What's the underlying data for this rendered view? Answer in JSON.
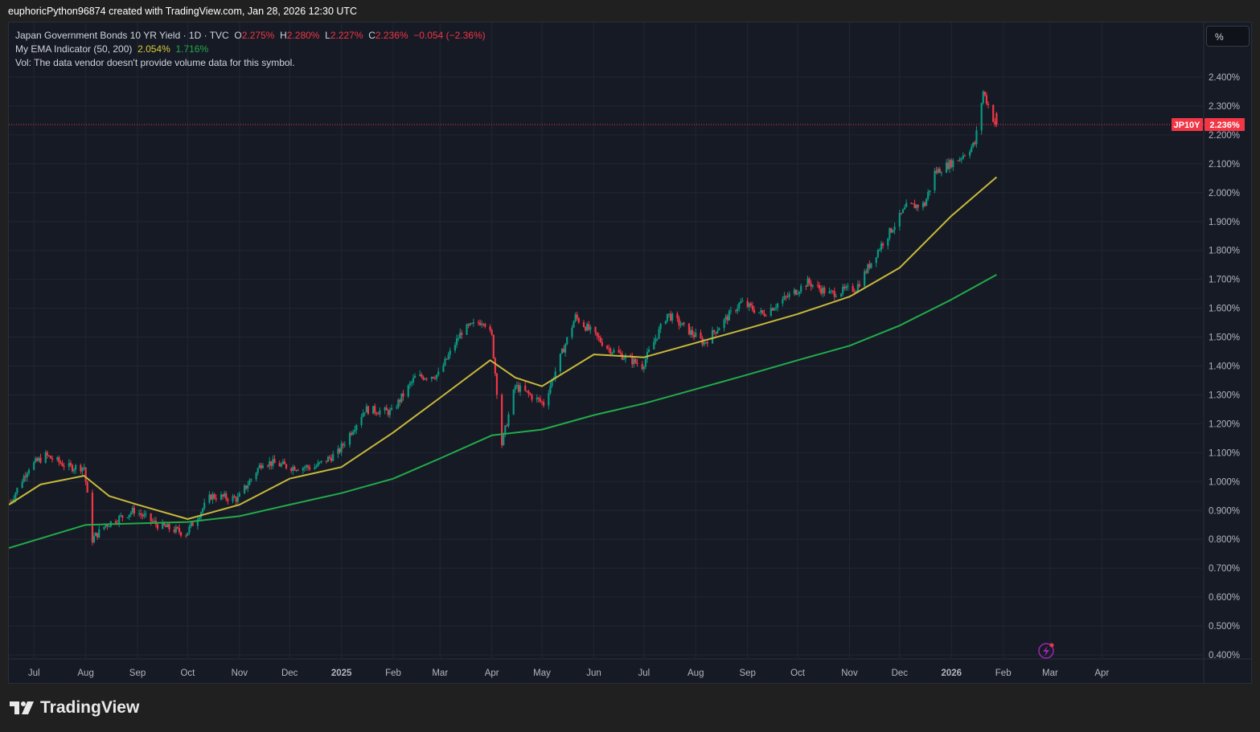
{
  "header": {
    "attribution": "euphoricPython96874 created with TradingView.com, Jan 28, 2026 12:30 UTC"
  },
  "legend": {
    "symbol_desc": "Japan Government Bonds 10 YR Yield · 1D · TVC",
    "open_label": "O",
    "open": "2.275%",
    "high_label": "H",
    "high": "2.280%",
    "low_label": "L",
    "low": "2.227%",
    "close_label": "C",
    "close": "2.236%",
    "change": "−0.054 (−2.36%)",
    "indicator_name": "My EMA Indicator (50, 200)",
    "ema50_value": "2.054%",
    "ema200_value": "1.716%",
    "vol_line": "Vol: The data vendor doesn't provide volume data for this symbol."
  },
  "unit_button": "%",
  "price_tag": {
    "symbol": "JP10Y",
    "value": "2.236%"
  },
  "footer": {
    "brand": "TradingView"
  },
  "colors": {
    "background": "#161a25",
    "up": "#089981",
    "down": "#f23645",
    "ema50": "#c8b93a",
    "ema200": "#22ab4a",
    "price_line": "#f23645"
  },
  "icons": [
    "tradingview-logo-icon",
    "lightning-icon"
  ],
  "chart_data": {
    "type": "candlestick",
    "title": "Japan Government Bonds 10 YR Yield",
    "timeframe": "1D",
    "source": "TVC",
    "ylim": [
      0.4,
      2.5
    ],
    "y_ticks": [
      "0.400%",
      "0.500%",
      "0.600%",
      "0.700%",
      "0.800%",
      "0.900%",
      "1.000%",
      "1.100%",
      "1.200%",
      "1.300%",
      "1.400%",
      "1.500%",
      "1.600%",
      "1.700%",
      "1.800%",
      "1.900%",
      "2.000%",
      "2.100%",
      "2.200%",
      "2.300%",
      "2.400%"
    ],
    "y_tick_values": [
      0.4,
      0.5,
      0.6,
      0.7,
      0.8,
      0.9,
      1.0,
      1.1,
      1.2,
      1.3,
      1.4,
      1.5,
      1.6,
      1.7,
      1.8,
      1.9,
      2.0,
      2.1,
      2.2,
      2.3,
      2.4
    ],
    "x_range": [
      "2024-06-16",
      "2026-05-05"
    ],
    "x_ticks": [
      {
        "label": "Jul",
        "date": "2024-07-01"
      },
      {
        "label": "Aug",
        "date": "2024-08-01"
      },
      {
        "label": "Sep",
        "date": "2024-09-01"
      },
      {
        "label": "Oct",
        "date": "2024-10-01"
      },
      {
        "label": "Nov",
        "date": "2024-11-01"
      },
      {
        "label": "Dec",
        "date": "2024-12-01"
      },
      {
        "label": "2025",
        "date": "2025-01-01"
      },
      {
        "label": "Feb",
        "date": "2025-02-01"
      },
      {
        "label": "Mar",
        "date": "2025-03-01"
      },
      {
        "label": "Apr",
        "date": "2025-04-01"
      },
      {
        "label": "May",
        "date": "2025-05-01"
      },
      {
        "label": "Jun",
        "date": "2025-06-01"
      },
      {
        "label": "Jul",
        "date": "2025-07-01"
      },
      {
        "label": "Aug",
        "date": "2025-08-01"
      },
      {
        "label": "Sep",
        "date": "2025-09-01"
      },
      {
        "label": "Oct",
        "date": "2025-10-01"
      },
      {
        "label": "Nov",
        "date": "2025-11-01"
      },
      {
        "label": "Dec",
        "date": "2025-12-01"
      },
      {
        "label": "2026",
        "date": "2026-01-01"
      },
      {
        "label": "Feb",
        "date": "2026-02-01"
      },
      {
        "label": "Mar",
        "date": "2026-03-01"
      },
      {
        "label": "Apr",
        "date": "2026-04-01"
      }
    ],
    "price_key_points": [
      [
        "2024-06-17",
        0.93
      ],
      [
        "2024-06-28",
        1.05
      ],
      [
        "2024-07-08",
        1.09
      ],
      [
        "2024-07-22",
        1.05
      ],
      [
        "2024-07-31",
        1.05
      ],
      [
        "2024-08-05",
        0.8
      ],
      [
        "2024-08-13",
        0.85
      ],
      [
        "2024-08-30",
        0.9
      ],
      [
        "2024-09-13",
        0.85
      ],
      [
        "2024-09-30",
        0.82
      ],
      [
        "2024-10-15",
        0.95
      ],
      [
        "2024-10-31",
        0.94
      ],
      [
        "2024-11-15",
        1.07
      ],
      [
        "2024-12-02",
        1.05
      ],
      [
        "2024-12-16",
        1.05
      ],
      [
        "2024-12-30",
        1.1
      ],
      [
        "2025-01-15",
        1.25
      ],
      [
        "2025-01-31",
        1.24
      ],
      [
        "2025-02-14",
        1.36
      ],
      [
        "2025-02-28",
        1.37
      ],
      [
        "2025-03-14",
        1.52
      ],
      [
        "2025-03-27",
        1.56
      ],
      [
        "2025-04-01",
        1.5
      ],
      [
        "2025-04-07",
        1.13
      ],
      [
        "2025-04-15",
        1.33
      ],
      [
        "2025-05-02",
        1.27
      ],
      [
        "2025-05-12",
        1.43
      ],
      [
        "2025-05-21",
        1.57
      ],
      [
        "2025-06-10",
        1.46
      ],
      [
        "2025-06-30",
        1.4
      ],
      [
        "2025-07-15",
        1.58
      ],
      [
        "2025-08-06",
        1.48
      ],
      [
        "2025-08-28",
        1.62
      ],
      [
        "2025-09-10",
        1.58
      ],
      [
        "2025-09-30",
        1.66
      ],
      [
        "2025-10-07",
        1.69
      ],
      [
        "2025-10-20",
        1.65
      ],
      [
        "2025-11-05",
        1.67
      ],
      [
        "2025-11-20",
        1.82
      ],
      [
        "2025-12-05",
        1.95
      ],
      [
        "2025-12-16",
        1.96
      ],
      [
        "2025-12-22",
        2.07
      ],
      [
        "2026-01-06",
        2.12
      ],
      [
        "2026-01-15",
        2.17
      ],
      [
        "2026-01-20",
        2.35
      ],
      [
        "2026-01-27",
        2.24
      ]
    ],
    "last_candle": {
      "date": "2026-01-28",
      "open": 2.275,
      "high": 2.28,
      "low": 2.227,
      "close": 2.236
    },
    "ema50_points": [
      [
        "2024-06-16",
        0.92
      ],
      [
        "2024-07-05",
        0.99
      ],
      [
        "2024-07-31",
        1.02
      ],
      [
        "2024-08-15",
        0.95
      ],
      [
        "2024-09-01",
        0.92
      ],
      [
        "2024-10-01",
        0.87
      ],
      [
        "2024-11-01",
        0.92
      ],
      [
        "2024-12-01",
        1.01
      ],
      [
        "2025-01-01",
        1.05
      ],
      [
        "2025-02-01",
        1.17
      ],
      [
        "2025-03-01",
        1.29
      ],
      [
        "2025-03-31",
        1.42
      ],
      [
        "2025-04-15",
        1.36
      ],
      [
        "2025-05-01",
        1.33
      ],
      [
        "2025-06-01",
        1.44
      ],
      [
        "2025-07-01",
        1.43
      ],
      [
        "2025-08-01",
        1.48
      ],
      [
        "2025-09-01",
        1.53
      ],
      [
        "2025-10-01",
        1.58
      ],
      [
        "2025-11-01",
        1.64
      ],
      [
        "2025-12-01",
        1.74
      ],
      [
        "2026-01-01",
        1.92
      ],
      [
        "2026-01-28",
        2.054
      ]
    ],
    "ema200_points": [
      [
        "2024-06-16",
        0.77
      ],
      [
        "2024-08-01",
        0.85
      ],
      [
        "2024-10-01",
        0.86
      ],
      [
        "2024-11-01",
        0.88
      ],
      [
        "2024-12-01",
        0.92
      ],
      [
        "2025-01-01",
        0.96
      ],
      [
        "2025-02-01",
        1.01
      ],
      [
        "2025-03-01",
        1.08
      ],
      [
        "2025-04-01",
        1.16
      ],
      [
        "2025-05-01",
        1.18
      ],
      [
        "2025-06-01",
        1.23
      ],
      [
        "2025-07-01",
        1.27
      ],
      [
        "2025-08-01",
        1.32
      ],
      [
        "2025-09-01",
        1.37
      ],
      [
        "2025-10-01",
        1.42
      ],
      [
        "2025-11-01",
        1.47
      ],
      [
        "2025-12-01",
        1.54
      ],
      [
        "2026-01-01",
        1.63
      ],
      [
        "2026-01-28",
        1.716
      ]
    ]
  }
}
